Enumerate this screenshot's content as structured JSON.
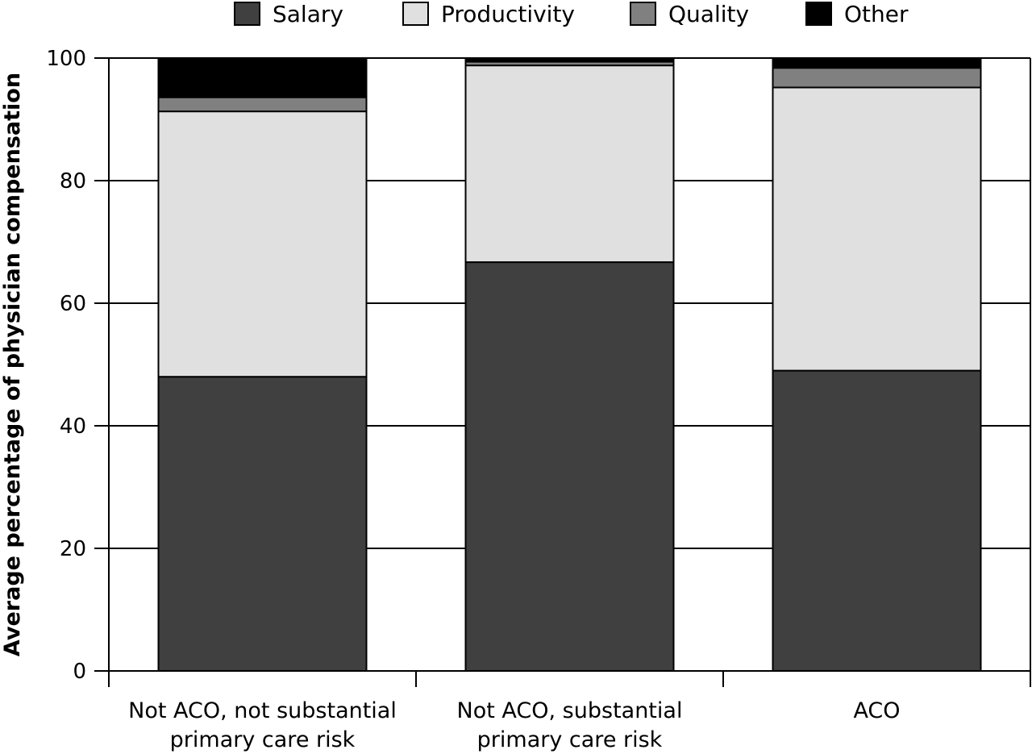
{
  "chart_data": {
    "type": "bar",
    "stacked": true,
    "categories": [
      [
        "Not ACO, not substantial",
        "primary care risk"
      ],
      [
        "Not ACO, substantial",
        "primary care risk"
      ],
      [
        "ACO"
      ]
    ],
    "series": [
      {
        "name": "Salary",
        "color": "#404040",
        "values": [
          48.0,
          66.7,
          49.0
        ]
      },
      {
        "name": "Productivity",
        "color": "#e0e0e0",
        "values": [
          43.3,
          32.1,
          46.2
        ]
      },
      {
        "name": "Quality",
        "color": "#808080",
        "values": [
          2.3,
          0.6,
          3.2
        ]
      },
      {
        "name": "Other",
        "color": "#000000",
        "values": [
          6.4,
          0.6,
          1.6
        ]
      }
    ],
    "ylabel": "Average percentage of physician compensation",
    "ylim": [
      0,
      100
    ],
    "yticks": [
      0,
      20,
      40,
      60,
      80,
      100
    ],
    "grid": true,
    "legend_position": "top"
  }
}
